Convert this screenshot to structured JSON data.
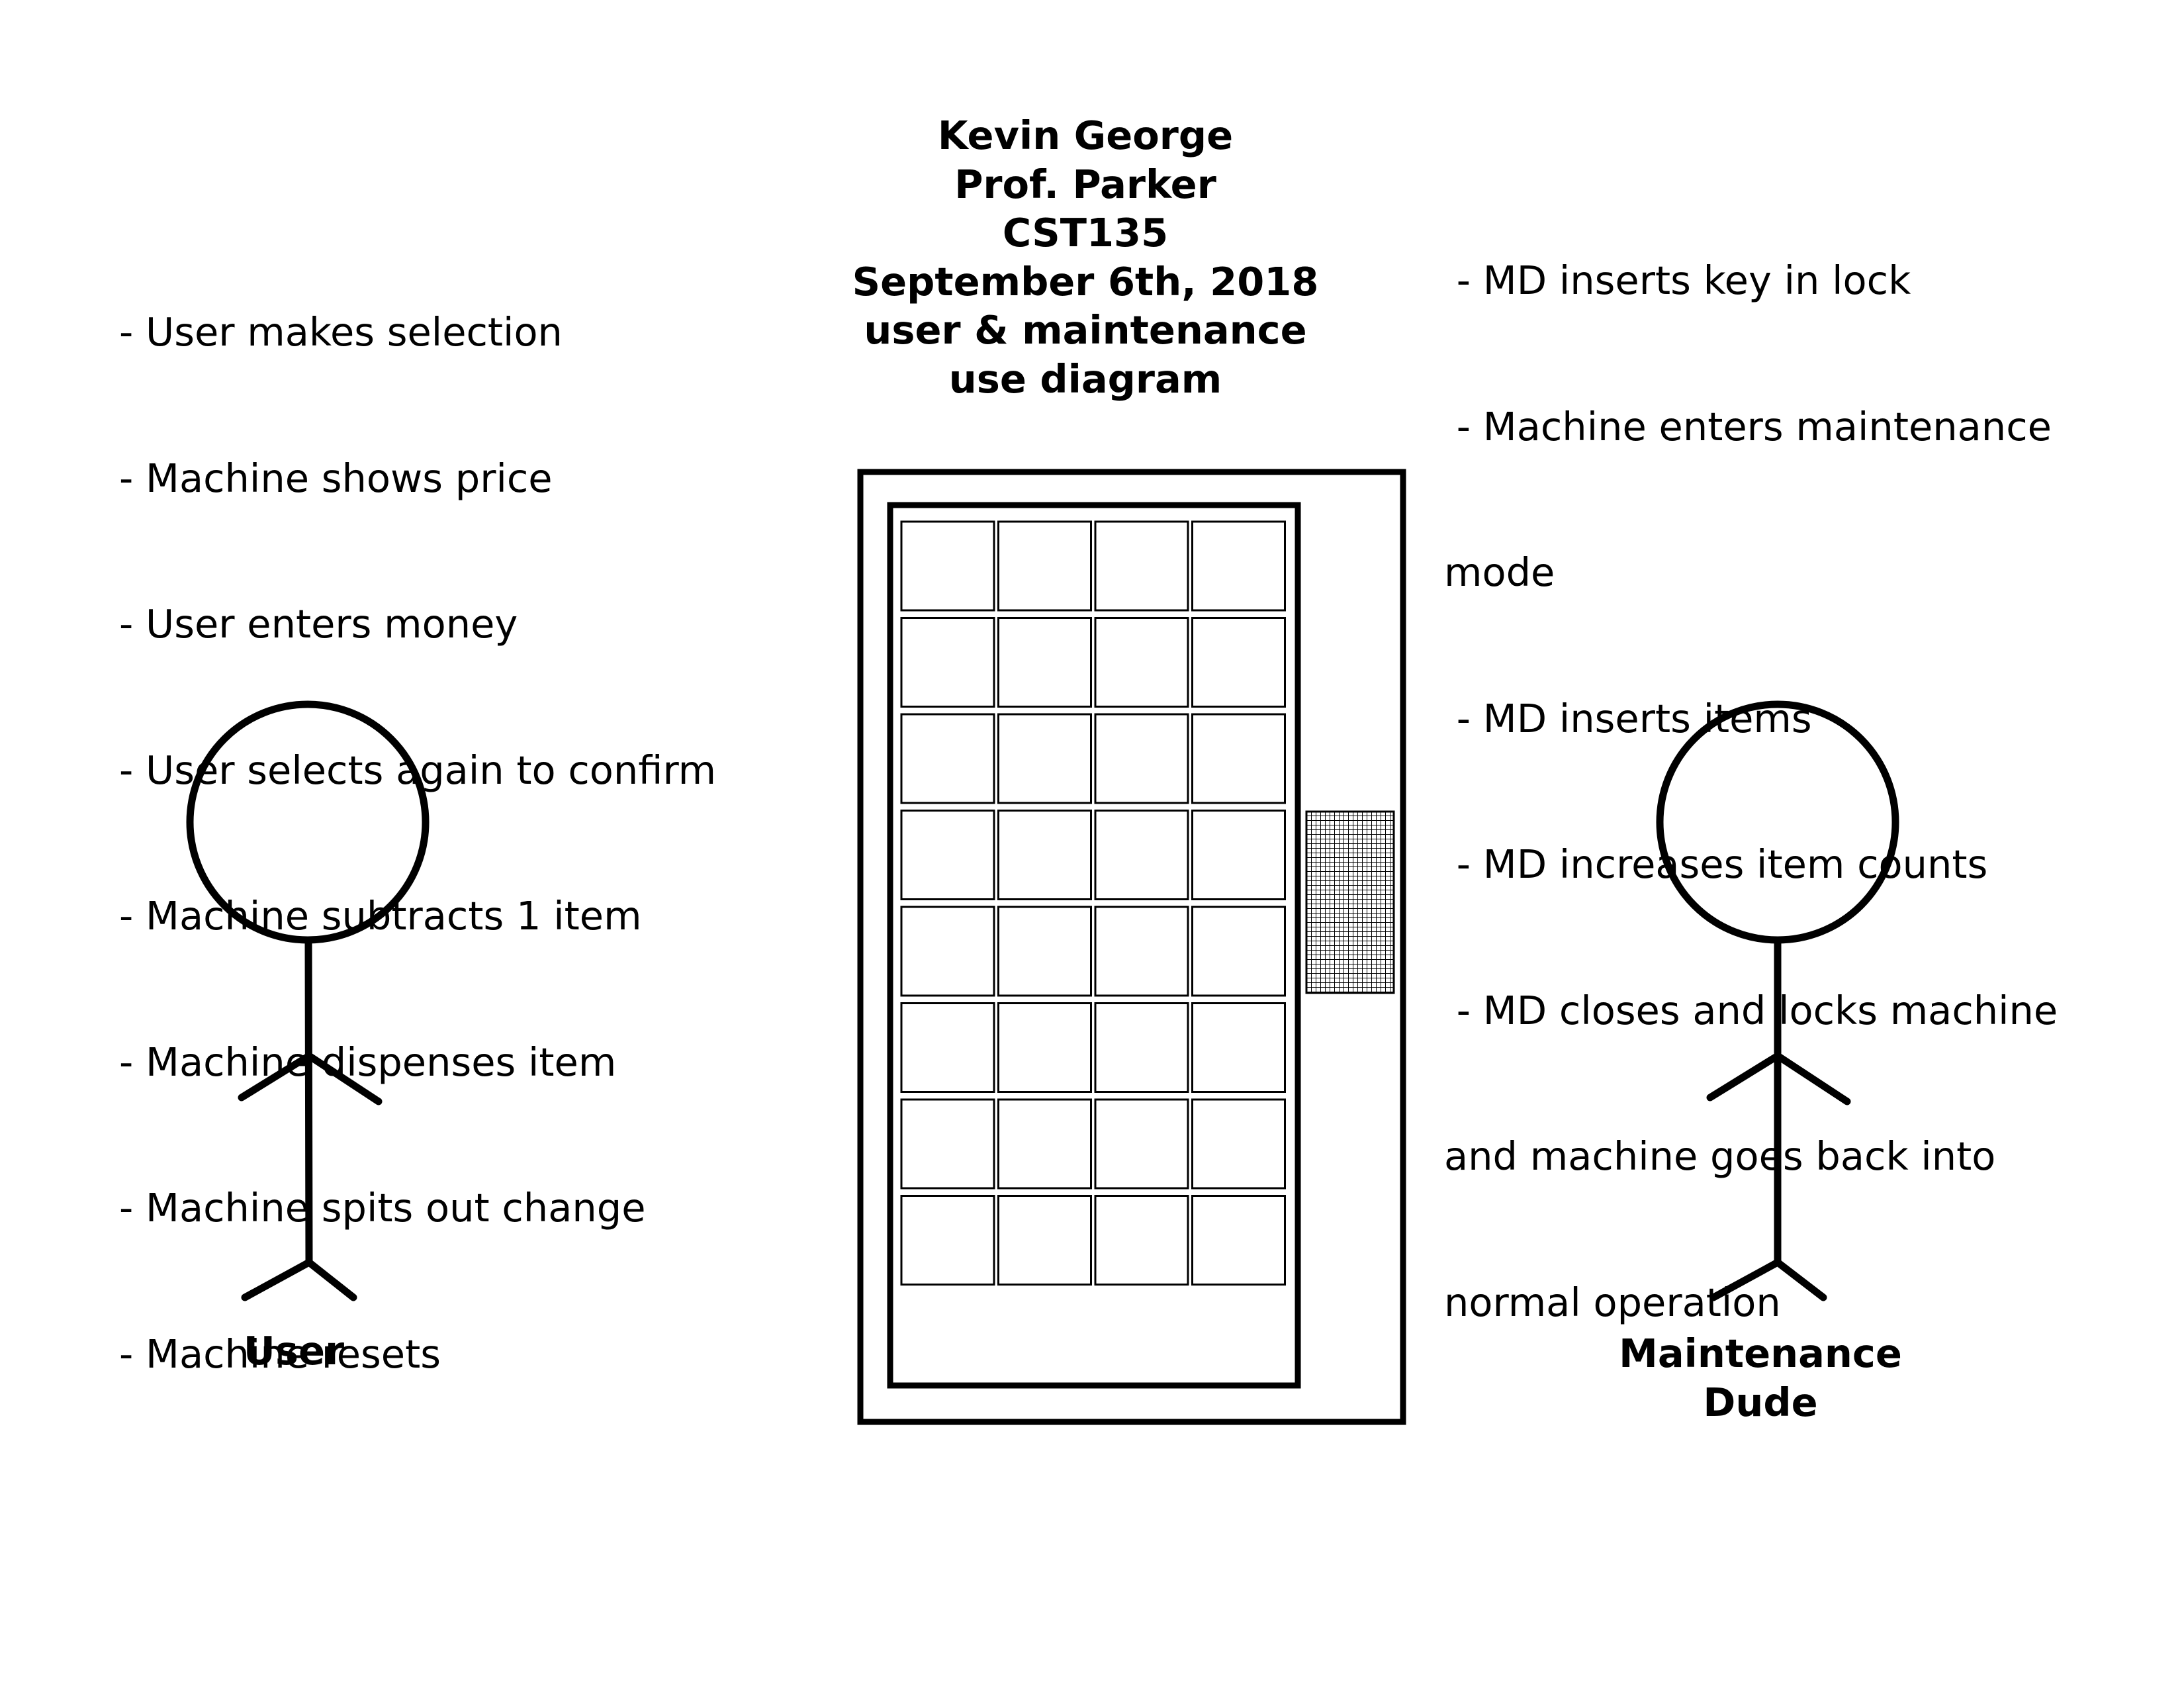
{
  "header": {
    "lines": [
      "Kevin George",
      "Prof. Parker",
      "CST135",
      "September 6th, 2018",
      "user & maintenance",
      "use diagram"
    ]
  },
  "user_steps": [
    "- User makes selection",
    "- Machine shows price",
    "- User enters money",
    "- User selects again to confirm",
    "- Machine subtracts 1 item",
    "- Machine dispenses item",
    "- Machine spits out change",
    "- Machine resets"
  ],
  "maintenance_steps": [
    " - MD inserts key in lock",
    " - Machine enters maintenance",
    "mode",
    " - MD inserts items",
    " - MD increases item counts",
    " - MD closes and locks machine",
    "and machine goes back into",
    "normal operation"
  ],
  "actors": {
    "user": {
      "label": "User",
      "icon": "stick-figure-icon"
    },
    "maintenance": {
      "label_lines": [
        "Maintenance",
        "Dude"
      ],
      "icon": "stick-figure-icon"
    }
  },
  "vending_machine": {
    "icon": "vending-machine-icon",
    "slot_rows": 8,
    "slot_columns": 4,
    "keypad_icon": "keypad-grid-icon"
  },
  "colors": {
    "ink": "#000000",
    "paper": "#ffffff"
  }
}
